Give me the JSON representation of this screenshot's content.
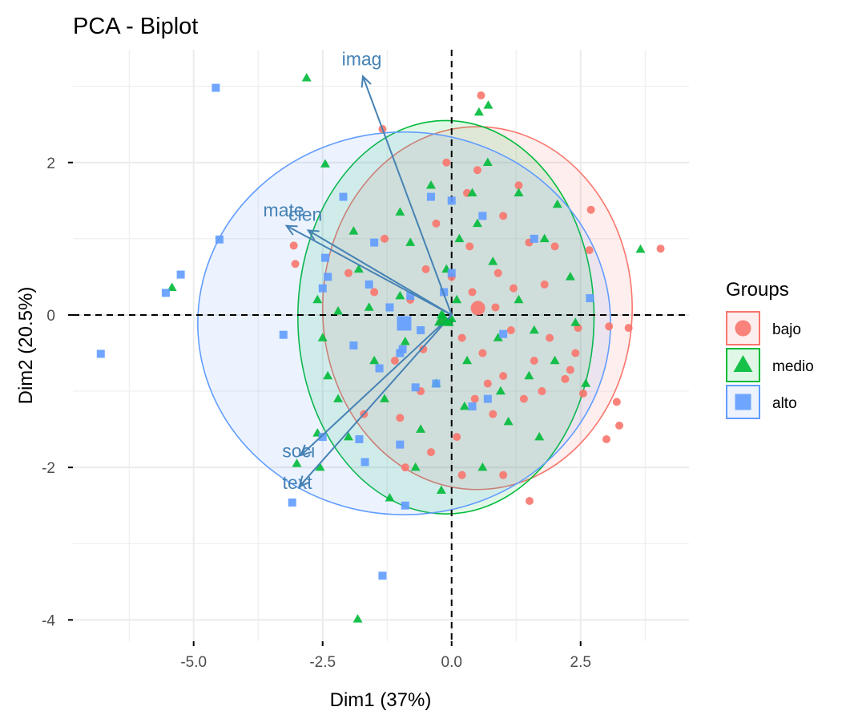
{
  "chart_data": {
    "type": "scatter",
    "title": "PCA - Biplot",
    "xlabel": "Dim1 (37%)",
    "ylabel": "Dim2 (20.5%)",
    "xlim": [
      -7.34,
      4.6
    ],
    "ylim": [
      -4.28,
      3.48
    ],
    "x_ticks": [
      -5.0,
      -2.5,
      0.0,
      2.5
    ],
    "x_tick_labels": [
      "-5.0",
      "-2.5",
      "0.0",
      "2.5"
    ],
    "y_ticks": [
      -4,
      -2,
      0,
      2
    ],
    "y_tick_labels": [
      "-4",
      "-2",
      "0",
      "2"
    ],
    "x_minor_grid": [
      -6.25,
      -3.75,
      -1.25,
      1.25,
      3.75
    ],
    "y_minor_grid": [
      -3,
      -1,
      1,
      3
    ],
    "grid": true,
    "reference_lines": {
      "x": 0,
      "y": 0,
      "style": "dashed"
    },
    "legend": {
      "title": "Groups",
      "position": "right",
      "entries": [
        {
          "label": "bajo",
          "shape": "circle",
          "color": "#F8766D"
        },
        {
          "label": "medio",
          "shape": "triangle",
          "color": "#00BA38"
        },
        {
          "label": "alto",
          "shape": "square",
          "color": "#619CFF"
        }
      ]
    },
    "groups": [
      {
        "name": "bajo",
        "shape": "circle",
        "color": "#F8766D",
        "centroid": [
          0.51,
          0.09
        ],
        "ellipse": {
          "cx": 0.5,
          "cy": 0.09,
          "rx": 3.0,
          "ry": 2.38
        },
        "points": [
          [
            0.57,
            2.88
          ],
          [
            -1.34,
            2.44
          ],
          [
            4.05,
            0.87
          ],
          [
            -3.06,
            0.91
          ],
          [
            -3.03,
            0.67
          ],
          [
            1.51,
            -2.44
          ],
          [
            3.43,
            -0.17
          ],
          [
            3.2,
            -1.14
          ],
          [
            3.0,
            -1.63
          ],
          [
            2.7,
            1.38
          ],
          [
            2.67,
            0.85
          ],
          [
            2.45,
            -0.17
          ],
          [
            2.4,
            -0.5
          ],
          [
            2.3,
            -0.72
          ],
          [
            2.2,
            -0.84
          ],
          [
            3.05,
            -0.15
          ],
          [
            2.55,
            -1.03
          ],
          [
            3.25,
            -1.45
          ],
          [
            1.5,
            0.95
          ],
          [
            1.2,
            0.35
          ],
          [
            0.9,
            0.55
          ],
          [
            0.3,
            1.6
          ],
          [
            -0.3,
            1.2
          ],
          [
            -0.5,
            0.6
          ],
          [
            0.2,
            -0.3
          ],
          [
            0.6,
            -0.5
          ],
          [
            1.0,
            -0.8
          ],
          [
            1.4,
            -1.1
          ],
          [
            0.8,
            -1.3
          ],
          [
            0.1,
            -1.6
          ],
          [
            -0.6,
            -1.0
          ],
          [
            -1.1,
            -0.6
          ],
          [
            -1.5,
            0.3
          ],
          [
            -2.0,
            0.55
          ],
          [
            -1.3,
            1.0
          ],
          [
            0.5,
            1.9
          ],
          [
            1.0,
            1.3
          ],
          [
            1.8,
            0.4
          ],
          [
            1.9,
            -0.3
          ],
          [
            1.6,
            -0.6
          ],
          [
            0.4,
            0.3
          ],
          [
            -0.2,
            -0.1
          ],
          [
            0.0,
            0.5
          ],
          [
            -0.8,
            0.2
          ],
          [
            0.7,
            -0.9
          ],
          [
            -0.4,
            -1.8
          ],
          [
            0.2,
            -2.1
          ],
          [
            1.0,
            -2.1
          ],
          [
            -0.9,
            -2.0
          ],
          [
            -1.7,
            -1.3
          ],
          [
            2.0,
            0.9
          ],
          [
            1.3,
            1.7
          ],
          [
            -0.1,
            2.0
          ],
          [
            0.35,
            0.9
          ],
          [
            0.85,
            0.1
          ],
          [
            1.15,
            -0.2
          ],
          [
            -0.55,
            -0.45
          ],
          [
            -1.0,
            -1.35
          ],
          [
            0.45,
            -1.1
          ],
          [
            1.75,
            -1.0
          ]
        ]
      },
      {
        "name": "medio",
        "shape": "triangle",
        "color": "#00BA38",
        "centroid": [
          -0.17,
          -0.06
        ],
        "ellipse": {
          "cx": -0.11,
          "cy": -0.03,
          "rx": 2.87,
          "ry": 2.58
        },
        "points": [
          [
            -2.81,
            3.11
          ],
          [
            -1.82,
            -3.99
          ],
          [
            -5.42,
            0.36
          ],
          [
            3.66,
            0.86
          ],
          [
            -2.45,
            1.98
          ],
          [
            0.53,
            2.66
          ],
          [
            0.71,
            2.75
          ],
          [
            2.05,
            1.45
          ],
          [
            1.8,
            1.0
          ],
          [
            1.3,
            1.6
          ],
          [
            0.7,
            2.0
          ],
          [
            0.5,
            1.2
          ],
          [
            -0.4,
            1.7
          ],
          [
            -1.0,
            1.35
          ],
          [
            -1.9,
            1.1
          ],
          [
            -2.5,
            -0.3
          ],
          [
            -2.4,
            -0.8
          ],
          [
            -2.2,
            -1.1
          ],
          [
            -2.6,
            -1.55
          ],
          [
            -2.55,
            -2.0
          ],
          [
            -3.0,
            -1.95
          ],
          [
            -1.2,
            -2.4
          ],
          [
            -0.2,
            -2.3
          ],
          [
            0.6,
            -2.0
          ],
          [
            1.1,
            -1.4
          ],
          [
            1.5,
            -0.8
          ],
          [
            2.0,
            -0.6
          ],
          [
            2.4,
            -0.1
          ],
          [
            2.6,
            -0.9
          ],
          [
            0.9,
            -0.3
          ],
          [
            0.3,
            -0.6
          ],
          [
            -0.3,
            -0.9
          ],
          [
            -0.9,
            -0.35
          ],
          [
            -1.6,
            0.1
          ],
          [
            -1.3,
            -1.1
          ],
          [
            -0.6,
            -1.5
          ],
          [
            0.1,
            0.2
          ],
          [
            -0.1,
            0.6
          ],
          [
            0.8,
            0.7
          ],
          [
            1.3,
            0.2
          ],
          [
            -1.8,
            0.6
          ],
          [
            -0.8,
            0.95
          ],
          [
            0.25,
            -1.2
          ],
          [
            1.7,
            -1.6
          ],
          [
            -2.0,
            -1.6
          ],
          [
            -1.5,
            -0.6
          ],
          [
            0.0,
            -0.05
          ],
          [
            -0.2,
            0.0
          ],
          [
            -0.05,
            -0.1
          ],
          [
            0.4,
            1.6
          ],
          [
            1.6,
            -0.2
          ],
          [
            -2.6,
            0.2
          ],
          [
            -2.2,
            0.05
          ],
          [
            0.95,
            -1.0
          ],
          [
            -0.7,
            -2.0
          ],
          [
            -1.0,
            0.25
          ],
          [
            2.3,
            0.5
          ],
          [
            0.15,
            1.0
          ]
        ]
      },
      {
        "name": "alto",
        "shape": "square",
        "color": "#619CFF",
        "centroid": [
          -0.92,
          -0.11
        ],
        "ellipse": {
          "cx": -0.92,
          "cy": -0.11,
          "rx": 4.0,
          "ry": 2.51
        },
        "points": [
          [
            -4.57,
            2.98
          ],
          [
            -4.5,
            0.99
          ],
          [
            -5.25,
            0.53
          ],
          [
            -5.54,
            0.29
          ],
          [
            -6.8,
            -0.51
          ],
          [
            -3.26,
            -0.26
          ],
          [
            -3.09,
            -2.46
          ],
          [
            -1.34,
            -3.42
          ],
          [
            -1.79,
            -1.63
          ],
          [
            -1.68,
            -1.93
          ],
          [
            -2.1,
            1.55
          ],
          [
            -1.5,
            0.95
          ],
          [
            -2.45,
            0.75
          ],
          [
            -2.4,
            0.5
          ],
          [
            -2.5,
            0.35
          ],
          [
            -1.6,
            0.4
          ],
          [
            -1.2,
            0.1
          ],
          [
            -0.8,
            0.25
          ],
          [
            -0.6,
            -0.2
          ],
          [
            -1.0,
            -0.5
          ],
          [
            -1.4,
            -0.7
          ],
          [
            -0.3,
            -0.9
          ],
          [
            0.0,
            0.55
          ],
          [
            0.0,
            1.5
          ],
          [
            0.6,
            1.3
          ],
          [
            1.6,
            1.0
          ],
          [
            2.68,
            0.22
          ],
          [
            -0.7,
            -0.95
          ],
          [
            -0.95,
            -0.45
          ],
          [
            -0.9,
            -2.5
          ],
          [
            -1.0,
            -1.7
          ],
          [
            0.4,
            -1.2
          ],
          [
            0.7,
            -1.1
          ],
          [
            -2.5,
            -1.6
          ],
          [
            -0.4,
            1.55
          ],
          [
            -1.9,
            -0.4
          ],
          [
            -0.15,
            0.3
          ],
          [
            1.0,
            -0.25
          ]
        ]
      }
    ],
    "variables": [
      {
        "name": "imag",
        "x": -1.72,
        "y": 3.13
      },
      {
        "name": "mate",
        "x": -3.2,
        "y": 1.17
      },
      {
        "name": "cien",
        "x": -2.78,
        "y": 1.11
      },
      {
        "name": "soci",
        "x": -2.92,
        "y": -1.84
      },
      {
        "name": "text",
        "x": -2.95,
        "y": -2.25
      }
    ],
    "arrow_color": "#4682B4"
  }
}
